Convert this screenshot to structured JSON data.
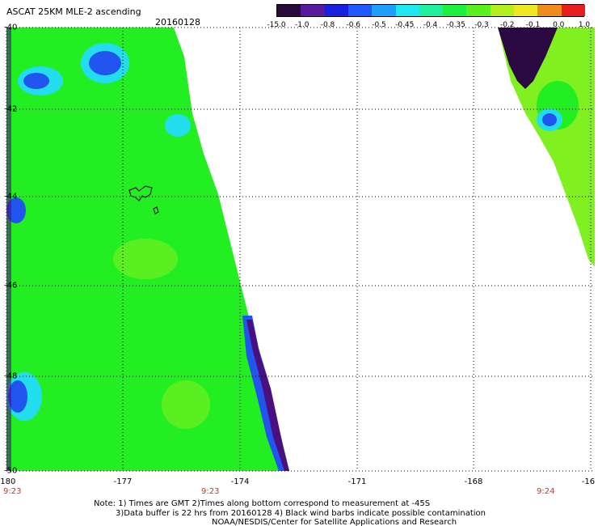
{
  "header": {
    "title": "ASCAT 25KM MLE-2 ascending",
    "date": "20160128"
  },
  "colorbar": {
    "tick_labels": [
      "-15.0",
      "-1.0",
      "-0.8",
      "-0.6",
      "-0.5",
      "-0.45",
      "-0.4",
      "-0.35",
      "-0.3",
      "-0.2",
      "-0.1",
      "0.0",
      "1.0"
    ],
    "colors": [
      "#2a0a3a",
      "#5a1aa0",
      "#1a20e0",
      "#1e5aff",
      "#1ea0ff",
      "#1ee8f0",
      "#1ef0a0",
      "#1ef040",
      "#5af01e",
      "#b4f01e",
      "#f0e81e",
      "#f08c1e",
      "#e81e1e"
    ]
  },
  "map": {
    "x_ticks": [
      "-180",
      "-177",
      "-174",
      "-171",
      "-168",
      "-16"
    ],
    "y_ticks": [
      "-40",
      "-42",
      "-44",
      "-46",
      "-48",
      "-50"
    ],
    "time_labels": [
      "9:23",
      "9:23",
      "9:24"
    ],
    "swath_colors": {
      "main": "#22ee22",
      "lime": "#80f020",
      "cyan": "#22ddee",
      "blue": "#2255ee",
      "deep_blue": "#1a22cc",
      "purple": "#4a1080",
      "dark_purple": "#2a0840"
    }
  },
  "notes": {
    "line1": "Note: 1) Times are GMT 2)Times along bottom correspond to measurement at -45S",
    "line2": "3)Data buffer is 22 hrs from 20160128 4) Black wind barbs indicate possible contamination",
    "line3": "NOAA/NESDIS/Center for Satellite Applications and Research"
  }
}
